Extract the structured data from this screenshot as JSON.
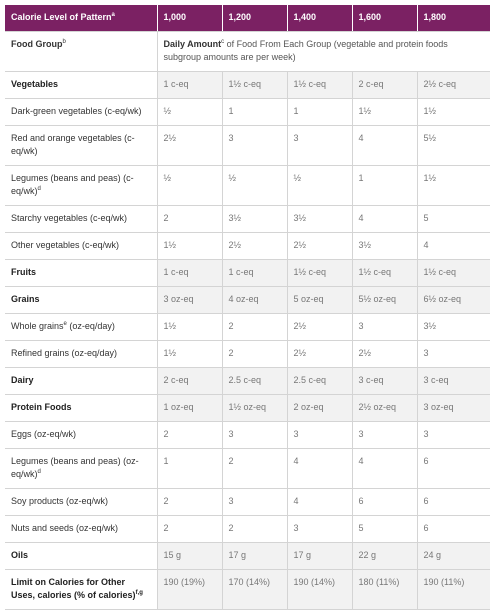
{
  "table": {
    "header": {
      "label": "Calorie Level of Pattern",
      "sup": "a",
      "columns": [
        "1,000",
        "1,200",
        "1,400",
        "1,600",
        "1,800"
      ]
    },
    "food_group": {
      "label": "Food Group",
      "sup": "b",
      "amount_bold": "Daily Amount",
      "amount_sup": "c",
      "amount_text": " of Food From Each Group (vegetable and protein foods subgroup amounts are per week)"
    },
    "rows": [
      {
        "label": "Vegetables",
        "group": true,
        "values": [
          "1 c-eq",
          "1½ c-eq",
          "1½ c-eq",
          "2 c-eq",
          "2½ c-eq"
        ]
      },
      {
        "label": "Dark-green vegetables (c-eq/wk)",
        "values": [
          "½",
          "1",
          "1",
          "1½",
          "1½"
        ]
      },
      {
        "label": "Red and orange vegetables (c-eq/wk)",
        "values": [
          "2½",
          "3",
          "3",
          "4",
          "5½"
        ]
      },
      {
        "label": "Legumes (beans and peas) (c-eq/wk)",
        "sup": "d",
        "values": [
          "½",
          "½",
          "½",
          "1",
          "1½"
        ]
      },
      {
        "label": "Starchy vegetables (c-eq/wk)",
        "values": [
          "2",
          "3½",
          "3½",
          "4",
          "5"
        ]
      },
      {
        "label": "Other vegetables (c-eq/wk)",
        "values": [
          "1½",
          "2½",
          "2½",
          "3½",
          "4"
        ]
      },
      {
        "label": "Fruits",
        "group": true,
        "values": [
          "1 c-eq",
          "1 c-eq",
          "1½ c-eq",
          "1½ c-eq",
          "1½ c-eq"
        ]
      },
      {
        "label": "Grains",
        "group": true,
        "values": [
          "3 oz-eq",
          "4 oz-eq",
          "5 oz-eq",
          "5½ oz-eq",
          "6½ oz-eq"
        ]
      },
      {
        "label": "Whole grains",
        "sup": "e",
        "label_after": " (oz-eq/day)",
        "values": [
          "1½",
          "2",
          "2½",
          "3",
          "3½"
        ]
      },
      {
        "label": "Refined grains (oz-eq/day)",
        "values": [
          "1½",
          "2",
          "2½",
          "2½",
          "3"
        ]
      },
      {
        "label": "Dairy",
        "group": true,
        "values": [
          "2 c-eq",
          "2.5 c-eq",
          "2.5 c-eq",
          "3 c-eq",
          "3 c-eq"
        ]
      },
      {
        "label": "Protein Foods",
        "group": true,
        "values": [
          "1 oz-eq",
          "1½ oz-eq",
          "2 oz-eq",
          "2½ oz-eq",
          "3 oz-eq"
        ]
      },
      {
        "label": "Eggs (oz-eq/wk)",
        "values": [
          "2",
          "3",
          "3",
          "3",
          "3"
        ]
      },
      {
        "label": "Legumes (beans and peas) (oz-eq/wk)",
        "sup": "d",
        "values": [
          "1",
          "2",
          "4",
          "4",
          "6"
        ]
      },
      {
        "label": "Soy products (oz-eq/wk)",
        "values": [
          "2",
          "3",
          "4",
          "6",
          "6"
        ]
      },
      {
        "label": "Nuts and seeds (oz-eq/wk)",
        "values": [
          "2",
          "2",
          "3",
          "5",
          "6"
        ]
      },
      {
        "label": "Oils",
        "group": true,
        "values": [
          "15 g",
          "17 g",
          "17 g",
          "22 g",
          "24 g"
        ]
      },
      {
        "label": "Limit on Calories for Other Uses, calories (% of calories)",
        "sup": "f,g",
        "group": true,
        "values": [
          "190 (19%)",
          "170 (14%)",
          "190 (14%)",
          "180 (11%)",
          "190 (11%)"
        ]
      }
    ]
  }
}
